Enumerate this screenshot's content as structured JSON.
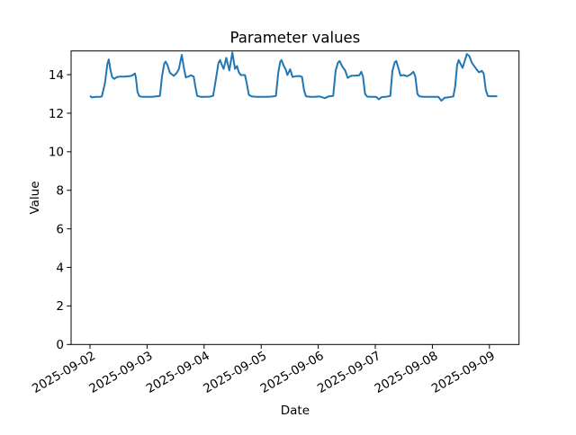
{
  "figure": {
    "background": "#ffffff"
  },
  "chart_data": {
    "type": "line",
    "title": "Parameter values",
    "xlabel": "Date",
    "ylabel": "Value",
    "grid": false,
    "legend": null,
    "line_color": "#1f77b4",
    "x_unit": "hours since 2025-09-02 00:00",
    "xlim_hours": [
      -7.95,
      180.45
    ],
    "ylim": [
      0,
      15.23
    ],
    "y_ticks": [
      0,
      2,
      4,
      6,
      8,
      10,
      12,
      14
    ],
    "x_ticks": [
      {
        "hour": 0,
        "label": "2025-09-02"
      },
      {
        "hour": 24,
        "label": "2025-09-03"
      },
      {
        "hour": 48,
        "label": "2025-09-04"
      },
      {
        "hour": 72,
        "label": "2025-09-05"
      },
      {
        "hour": 96,
        "label": "2025-09-06"
      },
      {
        "hour": 120,
        "label": "2025-09-07"
      },
      {
        "hour": 144,
        "label": "2025-09-08"
      },
      {
        "hour": 168,
        "label": "2025-09-09"
      }
    ],
    "series": [
      {
        "name": "parameter-values",
        "color": "#1f77b4",
        "points": [
          [
            0,
            12.9
          ],
          [
            0.8,
            12.82
          ],
          [
            2.5,
            12.85
          ],
          [
            4.5,
            12.85
          ],
          [
            5,
            12.88
          ],
          [
            6.3,
            13.55
          ],
          [
            7.3,
            14.55
          ],
          [
            7.9,
            14.79
          ],
          [
            8.6,
            14.25
          ],
          [
            9.3,
            13.88
          ],
          [
            10.2,
            13.78
          ],
          [
            11.2,
            13.87
          ],
          [
            12.5,
            13.9
          ],
          [
            14.5,
            13.9
          ],
          [
            16.5,
            13.92
          ],
          [
            17.7,
            13.95
          ],
          [
            18.9,
            14.06
          ],
          [
            19.3,
            13.85
          ],
          [
            20,
            13.1
          ],
          [
            20.8,
            12.88
          ],
          [
            22,
            12.85
          ],
          [
            24,
            12.85
          ],
          [
            26,
            12.85
          ],
          [
            27.7,
            12.87
          ],
          [
            29.4,
            12.9
          ],
          [
            30.3,
            13.9
          ],
          [
            31.2,
            14.55
          ],
          [
            31.8,
            14.68
          ],
          [
            32.6,
            14.5
          ],
          [
            33.6,
            14.1
          ],
          [
            35.2,
            13.94
          ],
          [
            36.4,
            14.08
          ],
          [
            37.4,
            14.3
          ],
          [
            38.6,
            15.03
          ],
          [
            39.5,
            14.35
          ],
          [
            40.3,
            13.86
          ],
          [
            41.4,
            13.9
          ],
          [
            42.4,
            13.97
          ],
          [
            43.6,
            13.9
          ],
          [
            44.3,
            13.4
          ],
          [
            45.1,
            12.9
          ],
          [
            46.5,
            12.85
          ],
          [
            48.5,
            12.85
          ],
          [
            50.5,
            12.86
          ],
          [
            51.8,
            12.9
          ],
          [
            53,
            13.8
          ],
          [
            54,
            14.6
          ],
          [
            54.7,
            14.76
          ],
          [
            55.5,
            14.5
          ],
          [
            56.2,
            14.3
          ],
          [
            57.3,
            14.87
          ],
          [
            58.6,
            14.22
          ],
          [
            59.9,
            15.15
          ],
          [
            61,
            14.3
          ],
          [
            61.8,
            14.45
          ],
          [
            62.6,
            14.12
          ],
          [
            63.4,
            13.98
          ],
          [
            65.2,
            13.98
          ],
          [
            66,
            13.5
          ],
          [
            66.8,
            12.95
          ],
          [
            68,
            12.87
          ],
          [
            70,
            12.85
          ],
          [
            72,
            12.85
          ],
          [
            74,
            12.85
          ],
          [
            76,
            12.86
          ],
          [
            77.5,
            12.88
          ],
          [
            78.2,
            12.9
          ],
          [
            79.2,
            14.1
          ],
          [
            80,
            14.66
          ],
          [
            80.5,
            14.76
          ],
          [
            81.5,
            14.45
          ],
          [
            82.3,
            14.28
          ],
          [
            83,
            13.98
          ],
          [
            84.2,
            14.28
          ],
          [
            85.2,
            13.88
          ],
          [
            86.6,
            13.92
          ],
          [
            88.2,
            13.93
          ],
          [
            89.2,
            13.88
          ],
          [
            90,
            13.2
          ],
          [
            90.8,
            12.88
          ],
          [
            92.5,
            12.85
          ],
          [
            94.5,
            12.85
          ],
          [
            96.5,
            12.87
          ],
          [
            98.8,
            12.78
          ],
          [
            100.3,
            12.87
          ],
          [
            102.3,
            12.9
          ],
          [
            103.3,
            14.2
          ],
          [
            104.3,
            14.63
          ],
          [
            105,
            14.71
          ],
          [
            106.2,
            14.4
          ],
          [
            107.3,
            14.22
          ],
          [
            108.4,
            13.83
          ],
          [
            109.7,
            13.94
          ],
          [
            111.5,
            13.95
          ],
          [
            113.3,
            13.97
          ],
          [
            114.1,
            14.15
          ],
          [
            114.8,
            13.9
          ],
          [
            115.7,
            13.0
          ],
          [
            116.6,
            12.86
          ],
          [
            118.5,
            12.85
          ],
          [
            120.3,
            12.85
          ],
          [
            121.5,
            12.72
          ],
          [
            122.7,
            12.84
          ],
          [
            124.5,
            12.85
          ],
          [
            126.3,
            12.9
          ],
          [
            127.2,
            14.2
          ],
          [
            128.2,
            14.65
          ],
          [
            128.8,
            14.71
          ],
          [
            129.8,
            14.3
          ],
          [
            130.6,
            13.95
          ],
          [
            131.9,
            13.98
          ],
          [
            133.3,
            13.92
          ],
          [
            134.7,
            14.0
          ],
          [
            136,
            14.15
          ],
          [
            136.8,
            13.92
          ],
          [
            137.7,
            13.0
          ],
          [
            138.6,
            12.87
          ],
          [
            140.5,
            12.85
          ],
          [
            142.5,
            12.85
          ],
          [
            144.5,
            12.85
          ],
          [
            146.5,
            12.85
          ],
          [
            147.8,
            12.65
          ],
          [
            149.2,
            12.8
          ],
          [
            151,
            12.83
          ],
          [
            152.8,
            12.87
          ],
          [
            153.6,
            13.4
          ],
          [
            154.4,
            14.5
          ],
          [
            155.1,
            14.76
          ],
          [
            155.9,
            14.55
          ],
          [
            156.7,
            14.35
          ],
          [
            157.7,
            14.75
          ],
          [
            158.5,
            15.07
          ],
          [
            159.5,
            14.97
          ],
          [
            160.7,
            14.6
          ],
          [
            162.3,
            14.32
          ],
          [
            163.6,
            14.12
          ],
          [
            164.8,
            14.2
          ],
          [
            165.6,
            14.05
          ],
          [
            166.5,
            13.2
          ],
          [
            167.3,
            12.9
          ],
          [
            168.5,
            12.88
          ],
          [
            170,
            12.88
          ],
          [
            171.3,
            12.88
          ]
        ]
      }
    ]
  }
}
